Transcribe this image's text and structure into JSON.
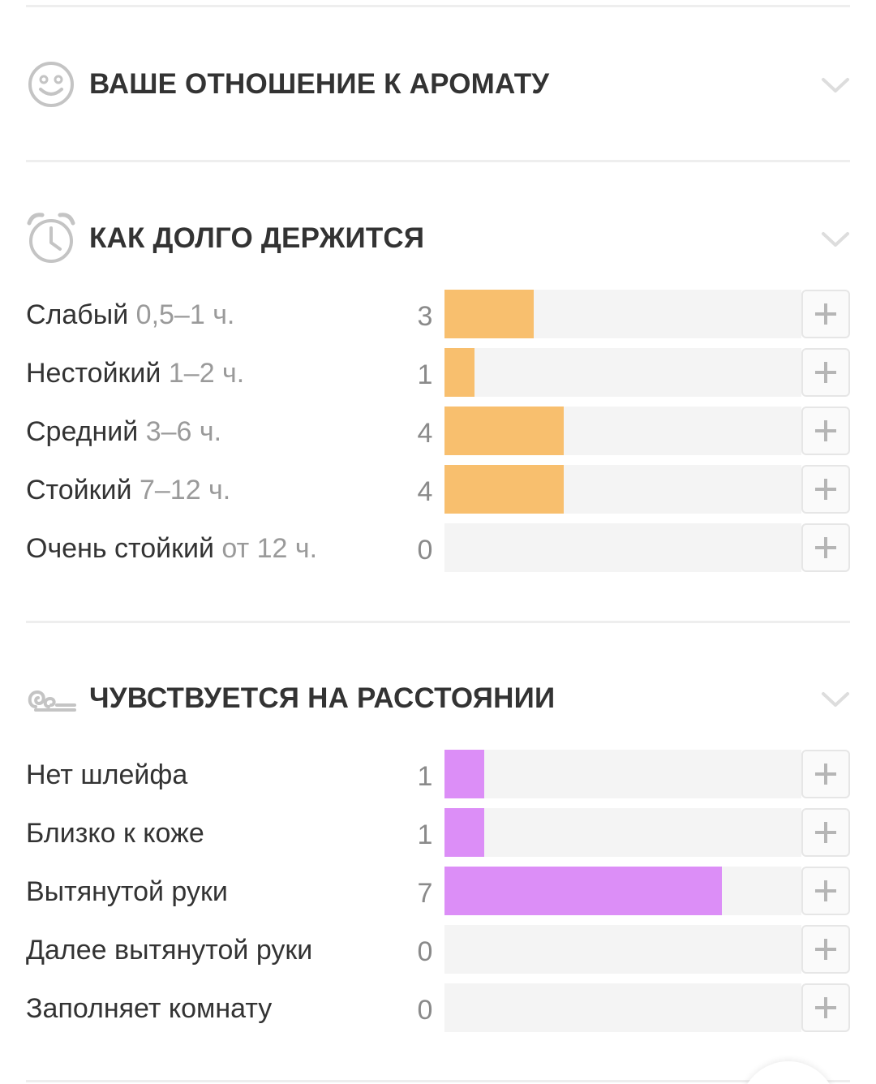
{
  "sections": {
    "attitude": {
      "title": "ВАШЕ ОТНОШЕНИЕ К АРОМАТУ",
      "icon": "smiley-icon"
    },
    "longevity": {
      "title": "КАК ДОЛГО ДЕРЖИТСЯ",
      "icon": "alarm-clock-icon",
      "bar_color": "#f8bf6e",
      "max_value": 12,
      "rows": [
        {
          "label": "Слабый",
          "sub": "0,5–1 ч.",
          "count": "3",
          "value": 3
        },
        {
          "label": "Нестойкий",
          "sub": "1–2 ч.",
          "count": "1",
          "value": 1
        },
        {
          "label": "Средний",
          "sub": "3–6 ч.",
          "count": "4",
          "value": 4
        },
        {
          "label": "Стойкий",
          "sub": "7–12 ч.",
          "count": "4",
          "value": 4
        },
        {
          "label": "Очень стойкий",
          "sub": "от 12 ч.",
          "count": "0",
          "value": 0
        }
      ]
    },
    "sillage": {
      "title": "ЧУВСТВУЕТСЯ НА РАССТОЯНИИ",
      "icon": "wind-swirl-icon",
      "bar_color": "#dc8ef7",
      "max_value": 9,
      "rows": [
        {
          "label": "Нет шлейфа",
          "count": "1",
          "value": 1
        },
        {
          "label": "Близко к коже",
          "count": "1",
          "value": 1
        },
        {
          "label": "Вытянутой руки",
          "count": "7",
          "value": 7
        },
        {
          "label": "Далее вытянутой руки",
          "count": "0",
          "value": 0
        },
        {
          "label": "Заполняет комнату",
          "count": "0",
          "value": 0
        }
      ]
    }
  }
}
